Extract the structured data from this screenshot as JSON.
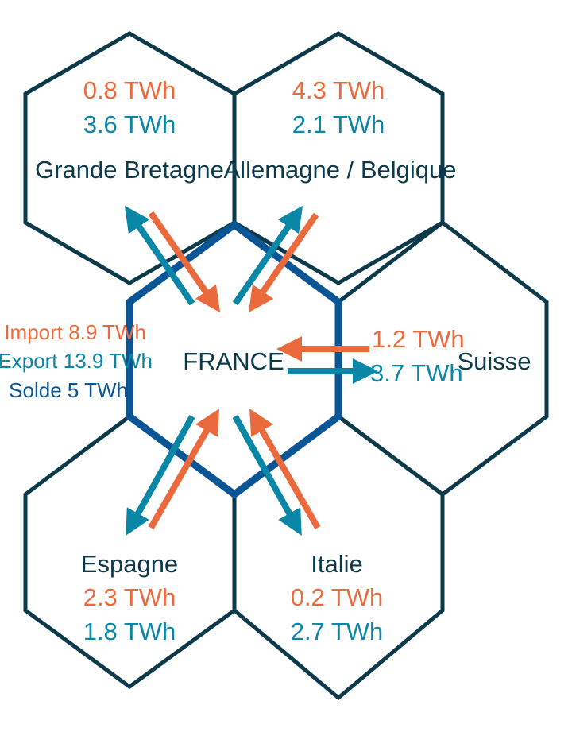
{
  "colors": {
    "dark": "#0d3a4a",
    "france_border": "#0a5596",
    "import": "#eb6a3d",
    "export": "#0a86a6",
    "solde": "#0a5596"
  },
  "france": {
    "label": "FRANCE",
    "import_text": "Import 8.9 TWh",
    "export_text": "Export 13.9 TWh",
    "solde_text": "Solde 5 TWh"
  },
  "neighbors": [
    {
      "id": "gb",
      "label": "Grande Bretagne",
      "import_value": "0.8 TWh",
      "export_value": "3.6 TWh"
    },
    {
      "id": "de",
      "label": "Allemagne / Belgique",
      "import_value": "4.3 TWh",
      "export_value": "2.1 TWh"
    },
    {
      "id": "ch",
      "label": "Suisse",
      "import_value": "1.2 TWh",
      "export_value": "3.7 TWh"
    },
    {
      "id": "es",
      "label": "Espagne",
      "import_value": "2.3 TWh",
      "export_value": "1.8 TWh"
    },
    {
      "id": "it",
      "label": "Italie",
      "import_value": "0.2 TWh",
      "export_value": "2.7 TWh"
    }
  ]
}
